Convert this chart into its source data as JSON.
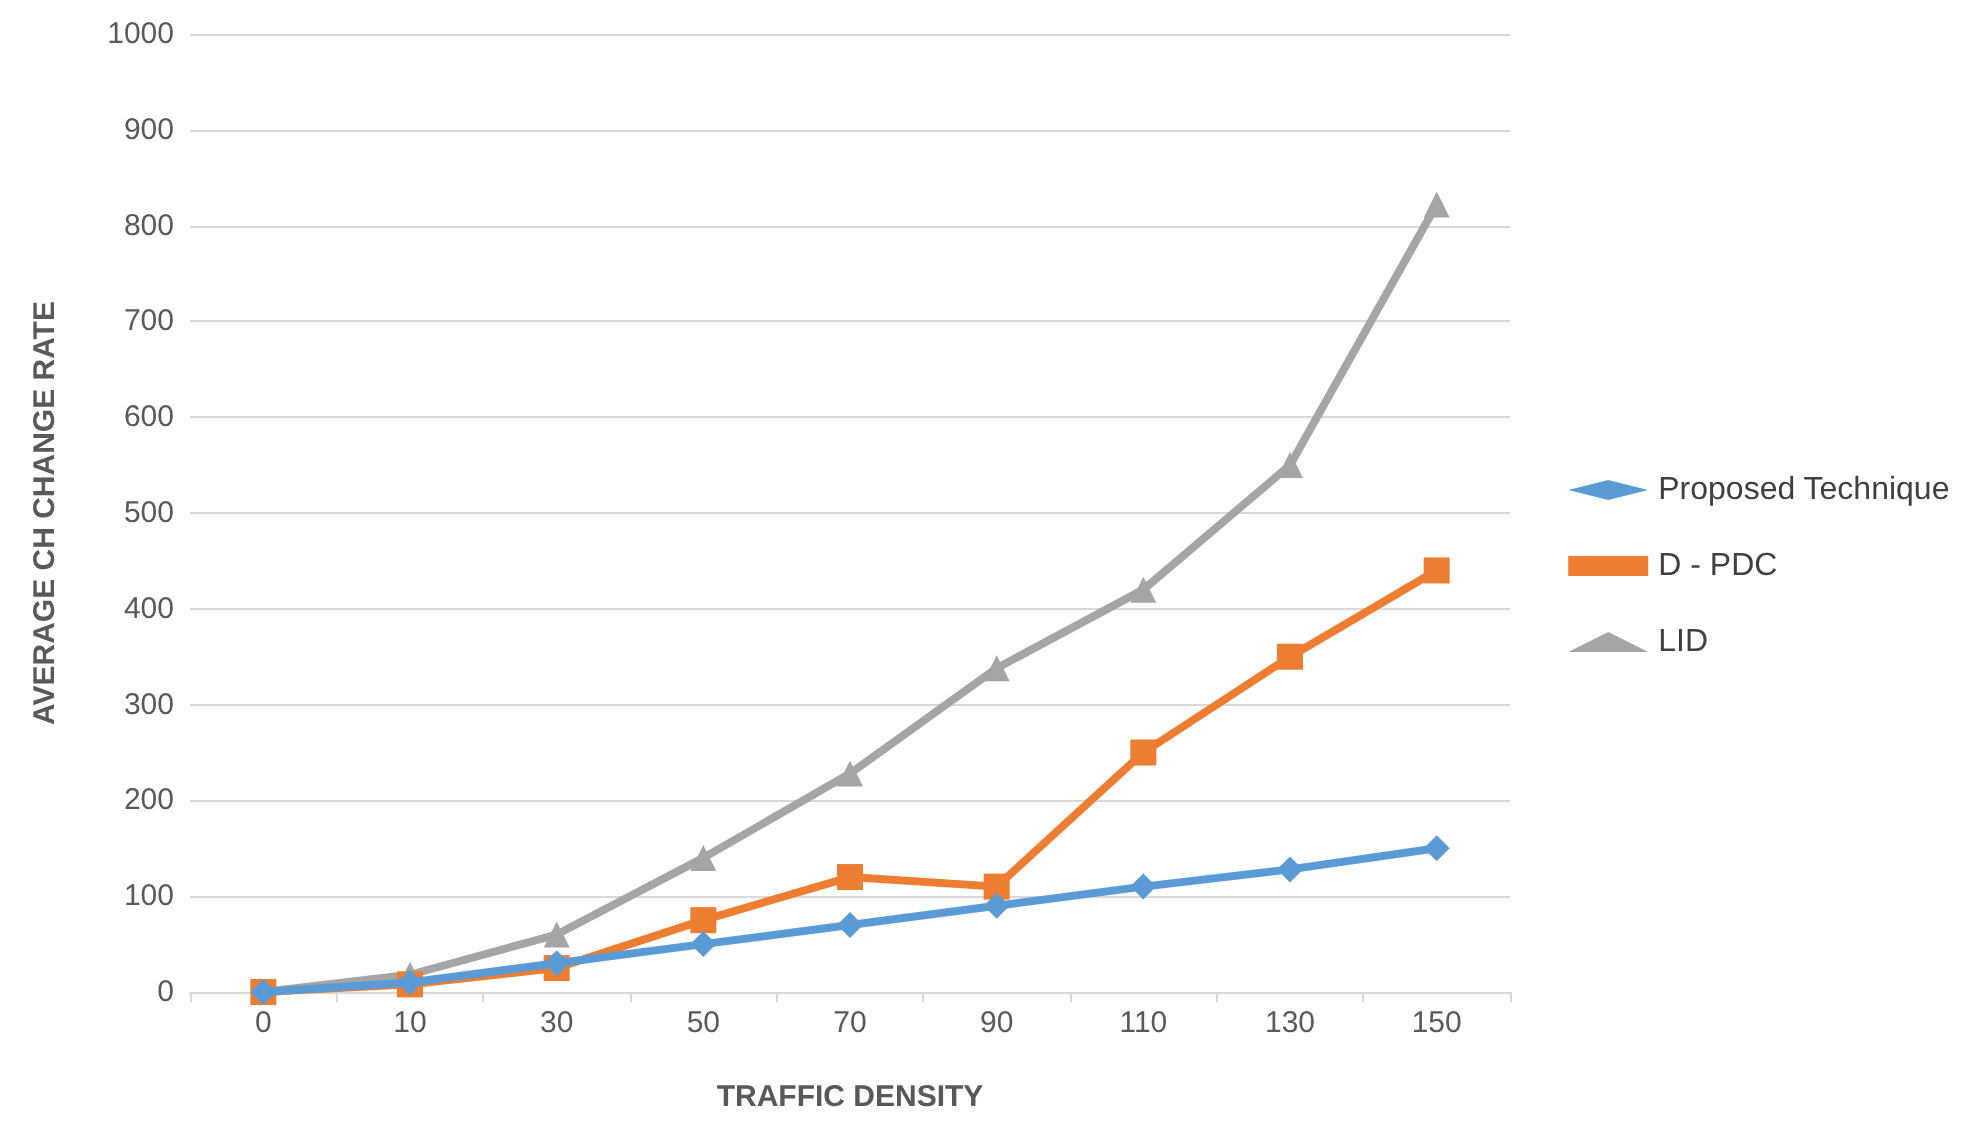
{
  "chart_data": {
    "type": "line",
    "xlabel": "TRAFFIC DENSITY",
    "ylabel": "AVERAGE CH CHANGE RATE",
    "categories": [
      "0",
      "10",
      "30",
      "50",
      "70",
      "90",
      "110",
      "130",
      "150"
    ],
    "series": [
      {
        "name": "Proposed Technique",
        "color": "#5b9bd5",
        "marker": "diamond",
        "values": [
          0,
          10,
          30,
          50,
          70,
          90,
          110,
          128,
          150
        ]
      },
      {
        "name": "D - PDC",
        "color": "#ed7d31",
        "marker": "square",
        "values": [
          0,
          8,
          25,
          75,
          120,
          110,
          250,
          350,
          440
        ]
      },
      {
        "name": "LID",
        "color": "#a5a5a5",
        "marker": "triangle",
        "values": [
          0,
          18,
          60,
          140,
          228,
          338,
          420,
          550,
          822
        ]
      }
    ],
    "ylim": [
      0,
      1000
    ],
    "yticks": [
      0,
      100,
      200,
      300,
      400,
      500,
      600,
      700,
      800,
      900,
      1000
    ],
    "grid": "y",
    "legend": "right"
  }
}
